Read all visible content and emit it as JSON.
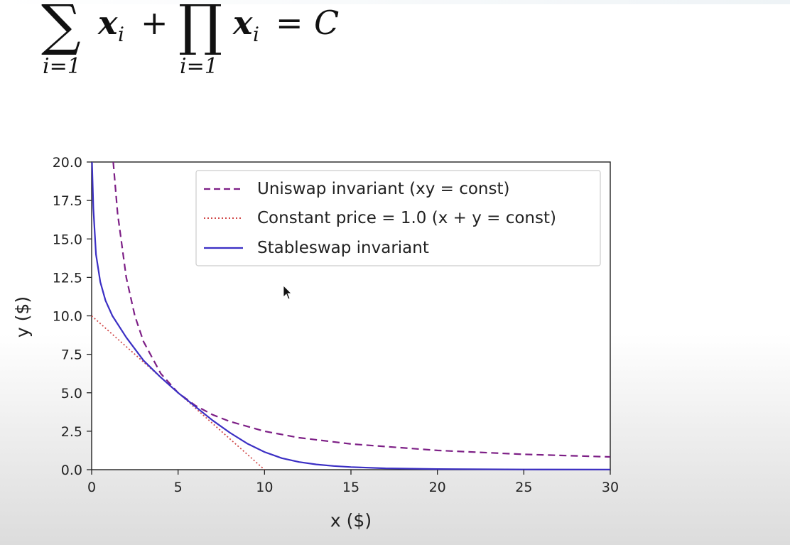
{
  "formula": {
    "sum_symbol": "∑",
    "sum_body": "x",
    "sum_sub": "i",
    "plus": "+",
    "prod_symbol": "∏",
    "prod_body": "x",
    "prod_sub": "i",
    "equals": "=",
    "rhs": "C",
    "sum_lower": "i=1",
    "prod_lower": "i=1"
  },
  "chart_data": {
    "type": "line",
    "xlabel": "x ($)",
    "ylabel": "y ($)",
    "xlim": [
      0,
      30
    ],
    "ylim": [
      0,
      20
    ],
    "xticks": [
      "0",
      "5",
      "10",
      "15",
      "20",
      "25",
      "30"
    ],
    "yticks": [
      "0.0",
      "2.5",
      "5.0",
      "7.5",
      "10.0",
      "12.5",
      "15.0",
      "17.5",
      "20.0"
    ],
    "grid": false,
    "legend_position": "top-right",
    "series": [
      {
        "name": "Uniswap invariant (xy = const)",
        "style": "dashed",
        "color": "#7d1f86",
        "x": [
          1.25,
          1.5,
          2,
          2.5,
          3,
          4,
          5,
          6,
          7,
          8,
          10,
          12,
          15,
          20,
          25,
          30
        ],
        "y": [
          20,
          16.67,
          12.5,
          10,
          8.33,
          6.25,
          5,
          4.17,
          3.57,
          3.13,
          2.5,
          2.08,
          1.67,
          1.25,
          1.0,
          0.83
        ]
      },
      {
        "name": "Constant price = 1.0 (x + y = const)",
        "style": "dotted",
        "color": "#d14a4a",
        "x": [
          0,
          10
        ],
        "y": [
          10,
          0
        ]
      },
      {
        "name": "Stableswap invariant",
        "style": "solid",
        "color": "#3b2fc4",
        "x": [
          0.02,
          0.1,
          0.25,
          0.5,
          0.8,
          1.2,
          2,
          3,
          4,
          5,
          6,
          7,
          8,
          9,
          10,
          11,
          12,
          13,
          14,
          15,
          17,
          20,
          25,
          30
        ],
        "y": [
          20,
          17,
          14,
          12.2,
          11,
          10,
          8.6,
          7.1,
          6,
          5,
          4.1,
          3.2,
          2.4,
          1.7,
          1.15,
          0.75,
          0.5,
          0.34,
          0.24,
          0.17,
          0.09,
          0.04,
          0.015,
          0.01
        ]
      }
    ]
  }
}
